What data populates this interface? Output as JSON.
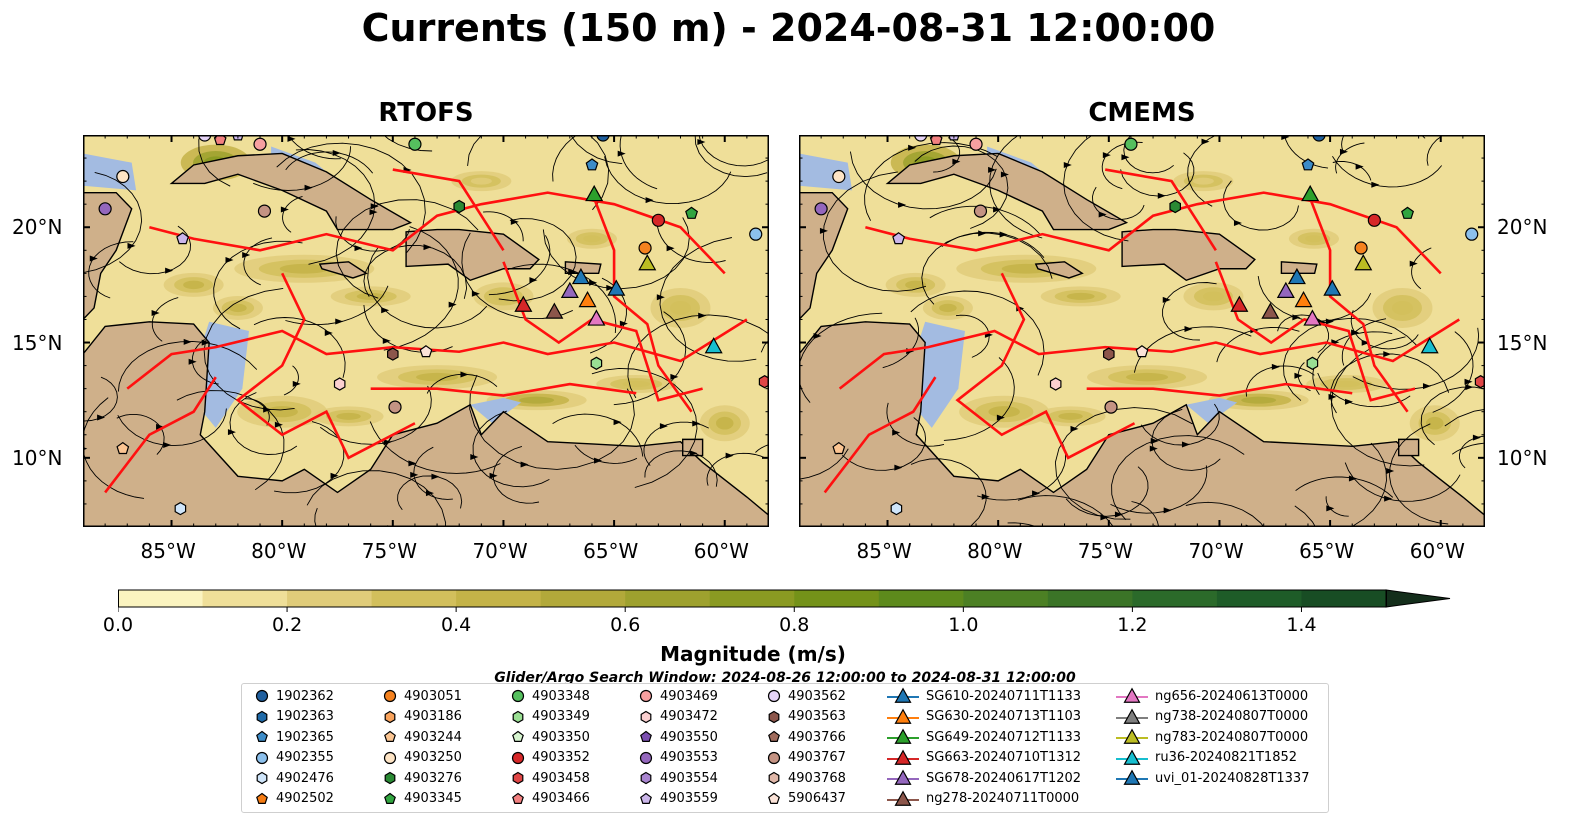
{
  "title": "Currents (150 m) - 2024-08-31 12:00:00",
  "panels": [
    {
      "title": "RTOFS",
      "coastline_shift": 0
    },
    {
      "title": "CMEMS",
      "coastline_shift": 1
    }
  ],
  "axes": {
    "x_ticks": [
      "85°W",
      "80°W",
      "75°W",
      "70°W",
      "65°W",
      "60°W"
    ],
    "y_ticks": [
      "20°N",
      "15°N",
      "10°N"
    ],
    "lon_range": [
      -89,
      -58
    ],
    "lat_range": [
      7,
      24
    ]
  },
  "colorbar": {
    "label": "Magnitude (m/s)",
    "ticks": [
      "0.0",
      "0.2",
      "0.4",
      "0.6",
      "0.8",
      "1.0",
      "1.2",
      "1.4"
    ],
    "min": 0.0,
    "max": 1.5,
    "extend": "max",
    "colors": [
      "#fbf4c0",
      "#efdf99",
      "#e0cc7a",
      "#d2bf5c",
      "#c4b348",
      "#b2a93a",
      "#9ea12e",
      "#8a9a22",
      "#749219",
      "#5d8a1c",
      "#4c8024",
      "#3b7427",
      "#2b6a2a",
      "#1e5c28",
      "#184d24",
      "#163d20",
      "#142e1b"
    ]
  },
  "colors": {
    "land": "#cfb08a",
    "shelf": "#a3bbe1",
    "boundary": "#ff1010",
    "streamline": "#000000"
  },
  "search_window": "Glider/Argo Search Window: 2024-08-26 12:00:00 to 2024-08-31 12:00:00",
  "legend": [
    {
      "label": "1902362",
      "marker": "circle",
      "color": "#1f5f9e"
    },
    {
      "label": "1902363",
      "marker": "hexagon",
      "color": "#1f6aa8"
    },
    {
      "label": "1902365",
      "marker": "pentagon",
      "color": "#3c8cc8"
    },
    {
      "label": "4902355",
      "marker": "circle",
      "color": "#8cc0ec"
    },
    {
      "label": "4902476",
      "marker": "hexagon",
      "color": "#cfe5fa"
    },
    {
      "label": "4902502",
      "marker": "pentagon",
      "color": "#f57c14"
    },
    {
      "label": "4903051",
      "marker": "circle",
      "color": "#f5821f"
    },
    {
      "label": "4903186",
      "marker": "hexagon",
      "color": "#f9a35c"
    },
    {
      "label": "4903244",
      "marker": "pentagon",
      "color": "#fbc592"
    },
    {
      "label": "4903250",
      "marker": "circle",
      "color": "#fde4c5"
    },
    {
      "label": "4903276",
      "marker": "hexagon",
      "color": "#2a8a34"
    },
    {
      "label": "4903345",
      "marker": "pentagon",
      "color": "#32a540"
    },
    {
      "label": "4903348",
      "marker": "circle",
      "color": "#55bf5e"
    },
    {
      "label": "4903349",
      "marker": "hexagon",
      "color": "#9adf93"
    },
    {
      "label": "4903350",
      "marker": "pentagon",
      "color": "#d6f4cf"
    },
    {
      "label": "4903352",
      "marker": "circle",
      "color": "#d62728"
    },
    {
      "label": "4903458",
      "marker": "hexagon",
      "color": "#e04646"
    },
    {
      "label": "4903466",
      "marker": "pentagon",
      "color": "#f28080"
    },
    {
      "label": "4903469",
      "marker": "circle",
      "color": "#f7a0a0"
    },
    {
      "label": "4903472",
      "marker": "hexagon",
      "color": "#fbd0d0"
    },
    {
      "label": "4903550",
      "marker": "pentagon",
      "color": "#7b4fb0"
    },
    {
      "label": "4903553",
      "marker": "circle",
      "color": "#9467bd"
    },
    {
      "label": "4903554",
      "marker": "hexagon",
      "color": "#a985d0"
    },
    {
      "label": "4903559",
      "marker": "pentagon",
      "color": "#cbb6ea"
    },
    {
      "label": "4903562",
      "marker": "circle",
      "color": "#e6d4f7"
    },
    {
      "label": "4903563",
      "marker": "hexagon",
      "color": "#8c564b"
    },
    {
      "label": "4903766",
      "marker": "pentagon",
      "color": "#a06b5c"
    },
    {
      "label": "4903767",
      "marker": "circle",
      "color": "#c49383"
    },
    {
      "label": "4903768",
      "marker": "hexagon",
      "color": "#e0b7a8"
    },
    {
      "label": "5906437",
      "marker": "pentagon",
      "color": "#fbe3d8"
    },
    {
      "label": "SG610-20240711T1133",
      "marker": "triangle",
      "color": "#1f77b4"
    },
    {
      "label": "SG630-20240713T1103",
      "marker": "triangle",
      "color": "#ff7f0e"
    },
    {
      "label": "SG649-20240712T1133",
      "marker": "triangle",
      "color": "#2ca02c"
    },
    {
      "label": "SG663-20240710T1312",
      "marker": "triangle",
      "color": "#d62728"
    },
    {
      "label": "SG678-20240617T1202",
      "marker": "triangle",
      "color": "#9467bd"
    },
    {
      "label": "ng278-20240711T0000",
      "marker": "triangle",
      "color": "#8c564b"
    },
    {
      "label": "ng656-20240613T0000",
      "marker": "triangle",
      "color": "#e377c2"
    },
    {
      "label": "ng738-20240807T0000",
      "marker": "triangle",
      "color": "#7f7f7f"
    },
    {
      "label": "ng783-20240807T0000",
      "marker": "triangle",
      "color": "#bcbd22"
    },
    {
      "label": "ru36-20240821T1852",
      "marker": "triangle",
      "color": "#17becf"
    },
    {
      "label": "uvi_01-20240828T1337",
      "marker": "triangle",
      "color": "#1f77b4"
    }
  ]
}
